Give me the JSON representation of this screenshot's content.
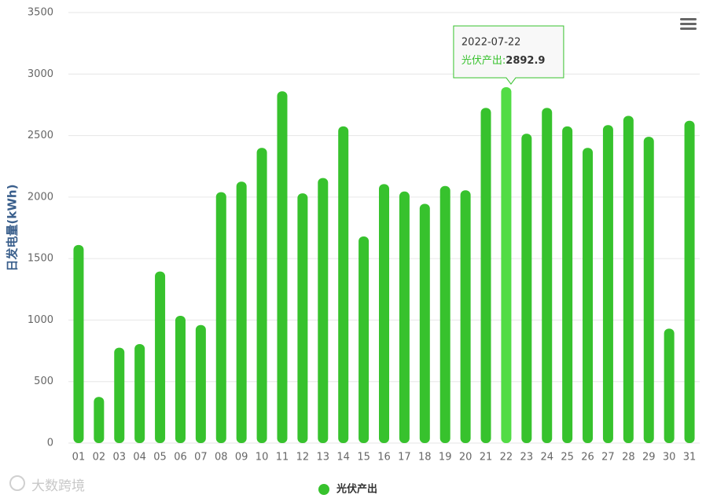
{
  "chart_data": {
    "type": "bar",
    "y_axis_title": "日发电量(kWh)",
    "categories": [
      "01",
      "02",
      "03",
      "04",
      "05",
      "06",
      "07",
      "08",
      "09",
      "10",
      "11",
      "12",
      "13",
      "14",
      "15",
      "16",
      "17",
      "18",
      "19",
      "20",
      "21",
      "22",
      "23",
      "24",
      "25",
      "26",
      "27",
      "28",
      "29",
      "30",
      "31"
    ],
    "series": [
      {
        "name": "光伏产出",
        "color": "#37c22d",
        "values": [
          1610,
          375,
          775,
          805,
          1395,
          1035,
          960,
          2040,
          2125,
          2400,
          2860,
          2030,
          2155,
          2575,
          1680,
          2105,
          2045,
          1945,
          2090,
          2055,
          2725,
          2892.9,
          2515,
          2725,
          2575,
          2400,
          2585,
          2660,
          2490,
          930,
          2620
        ]
      }
    ],
    "hover_color": "#52dc45",
    "ylim": [
      0,
      3500
    ],
    "yticks": [
      0,
      500,
      1000,
      1500,
      2000,
      2500,
      3000,
      3500
    ],
    "grid": true,
    "legend": "bottom",
    "tooltip": {
      "x": "2022-07-22",
      "series_label": "光伏产出:"
    },
    "watermark": "大数跨境"
  }
}
